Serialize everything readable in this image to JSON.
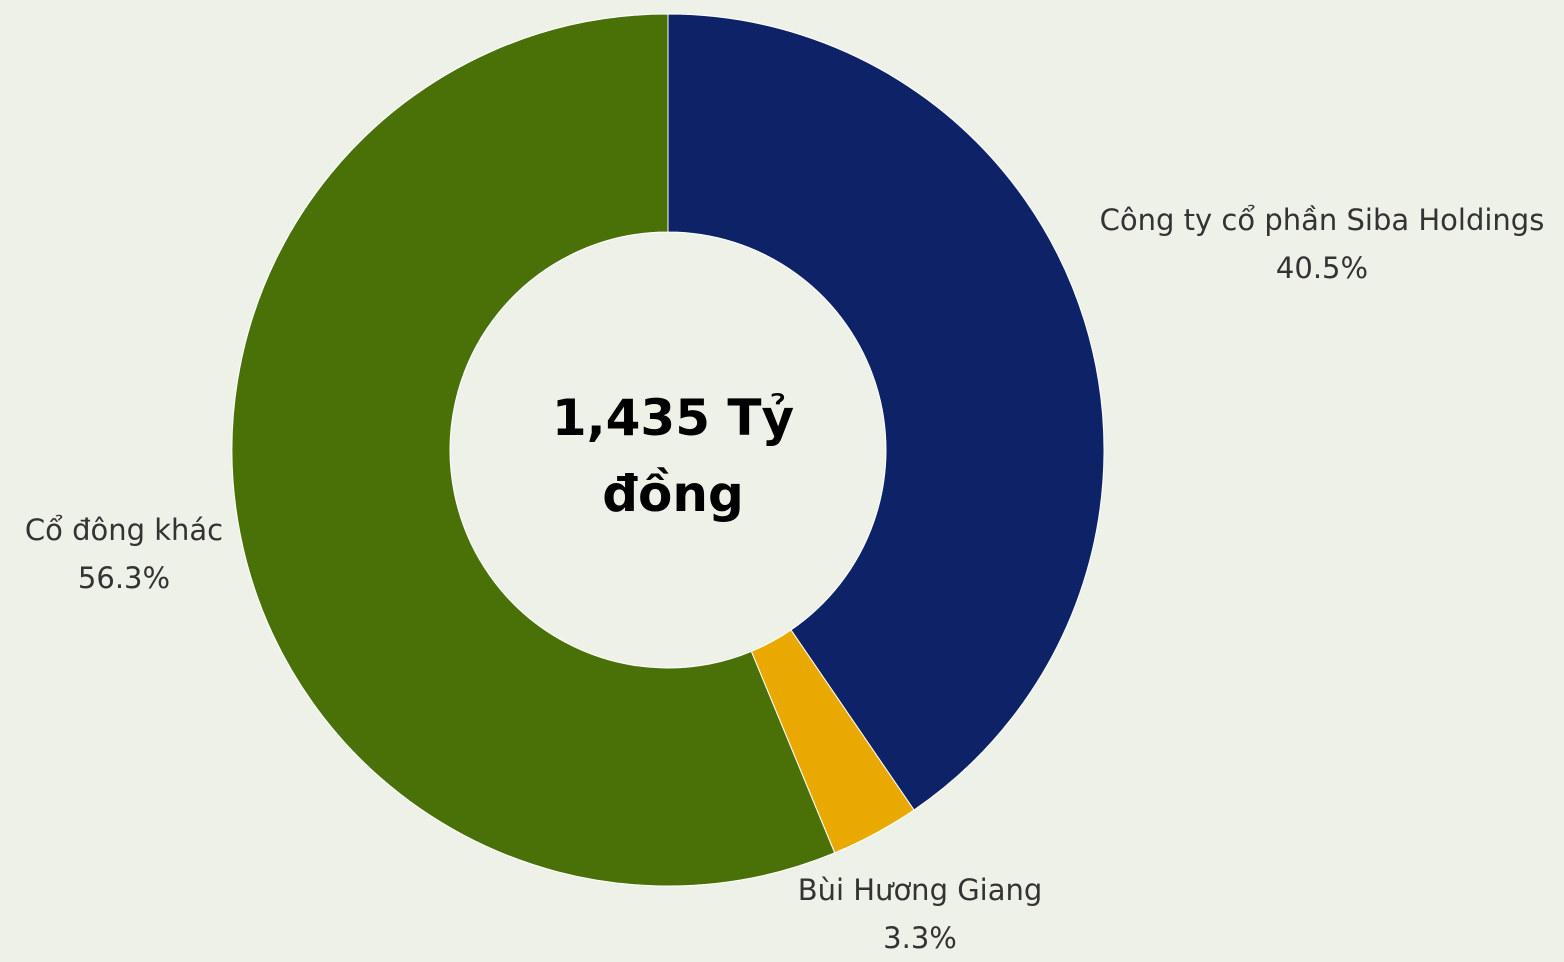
{
  "chart_data": {
    "type": "pie",
    "donut": true,
    "center_label": [
      "1,435 Tỷ",
      "đồng"
    ],
    "slices": [
      {
        "name": "Công ty cổ phần Siba Holdings",
        "value": 40.5,
        "label": "40.5%",
        "color": "#0e2267"
      },
      {
        "name": "Bùi Hương Giang",
        "value": 3.3,
        "label": "3.3%",
        "color": "#e9a900"
      },
      {
        "name": "Cổ đông khác",
        "value": 56.3,
        "label": "56.3%",
        "color": "#4a7108"
      }
    ]
  }
}
